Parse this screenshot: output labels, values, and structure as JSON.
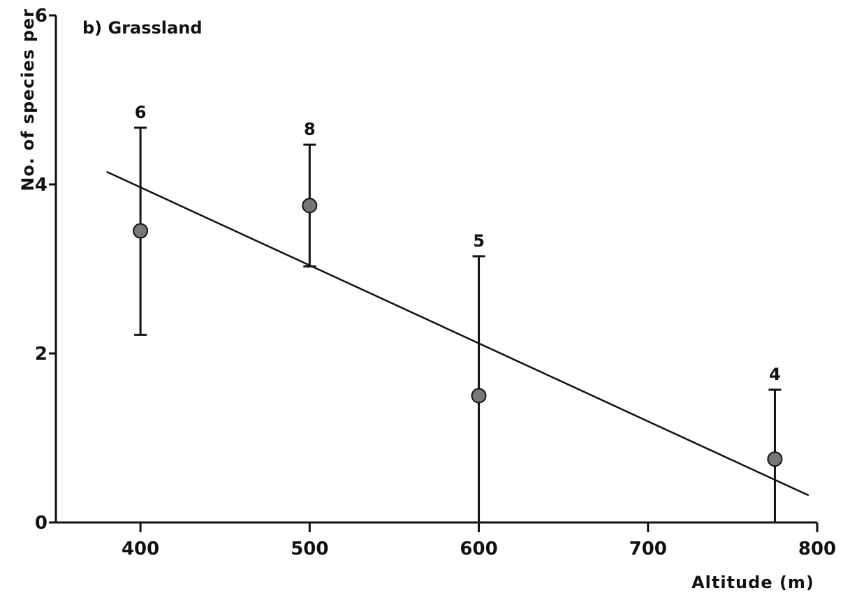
{
  "chart_data": {
    "type": "scatter",
    "title": "b) Grassland",
    "xlabel": "Altitude (m)",
    "ylabel": "No. of species per",
    "xlim": [
      350,
      800
    ],
    "ylim": [
      0,
      6
    ],
    "x_ticks": [
      400,
      500,
      600,
      700,
      800
    ],
    "y_ticks": [
      0,
      2,
      4,
      6
    ],
    "points": [
      {
        "x": 400,
        "y": 3.45,
        "err_low": 2.22,
        "err_high": 4.67,
        "n": "6"
      },
      {
        "x": 500,
        "y": 3.75,
        "err_low": 3.03,
        "err_high": 4.47,
        "n": "8"
      },
      {
        "x": 600,
        "y": 1.5,
        "err_low": 0.0,
        "err_high": 3.15,
        "n": "5"
      },
      {
        "x": 775,
        "y": 0.75,
        "err_low": 0.0,
        "err_high": 1.57,
        "n": "4"
      }
    ],
    "trend_line": {
      "x": [
        380,
        795
      ],
      "y": [
        4.15,
        0.32
      ]
    },
    "grid": false,
    "legend": "none"
  }
}
